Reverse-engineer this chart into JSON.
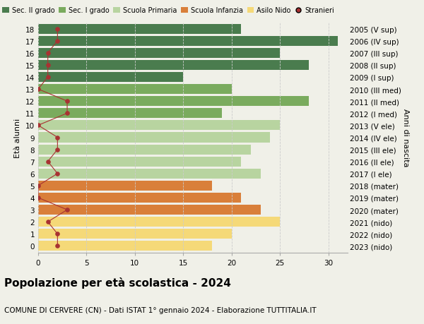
{
  "ages": [
    18,
    17,
    16,
    15,
    14,
    13,
    12,
    11,
    10,
    9,
    8,
    7,
    6,
    5,
    4,
    3,
    2,
    1,
    0
  ],
  "right_labels": [
    "2005 (V sup)",
    "2006 (IV sup)",
    "2007 (III sup)",
    "2008 (II sup)",
    "2009 (I sup)",
    "2010 (III med)",
    "2011 (II med)",
    "2012 (I med)",
    "2013 (V ele)",
    "2014 (IV ele)",
    "2015 (III ele)",
    "2016 (II ele)",
    "2017 (I ele)",
    "2018 (mater)",
    "2019 (mater)",
    "2020 (mater)",
    "2021 (nido)",
    "2022 (nido)",
    "2023 (nido)"
  ],
  "bar_values": [
    21,
    31,
    25,
    28,
    15,
    20,
    28,
    19,
    25,
    24,
    22,
    21,
    23,
    18,
    21,
    23,
    25,
    20,
    18
  ],
  "bar_colors": [
    "#4a7c4e",
    "#4a7c4e",
    "#4a7c4e",
    "#4a7c4e",
    "#4a7c4e",
    "#7aab5e",
    "#7aab5e",
    "#7aab5e",
    "#b8d4a0",
    "#b8d4a0",
    "#b8d4a0",
    "#b8d4a0",
    "#b8d4a0",
    "#d97f3a",
    "#d97f3a",
    "#d97f3a",
    "#f5d978",
    "#f5d978",
    "#f5d978"
  ],
  "stranieri_values": [
    2,
    2,
    1,
    1,
    1,
    0,
    3,
    3,
    0,
    2,
    2,
    1,
    2,
    0,
    0,
    3,
    1,
    2,
    2
  ],
  "stranieri_color": "#a83232",
  "stranieri_line_color": "#a83232",
  "xlim": [
    0,
    32
  ],
  "ylabel_left": "Età alunni",
  "ylabel_right": "Anni di nascita",
  "title": "Popolazione per età scolastica - 2024",
  "subtitle": "COMUNE DI CERVERE (CN) - Dati ISTAT 1° gennaio 2024 - Elaborazione TUTTITALIA.IT",
  "legend_labels": [
    "Sec. II grado",
    "Sec. I grado",
    "Scuola Primaria",
    "Scuola Infanzia",
    "Asilo Nido",
    "Stranieri"
  ],
  "legend_colors": [
    "#4a7c4e",
    "#7aab5e",
    "#b8d4a0",
    "#d97f3a",
    "#f5d978",
    "#a83232"
  ],
  "bg_color": "#f0f0e8",
  "bar_height": 0.82,
  "grid_color": "#cccccc",
  "title_fontsize": 11,
  "subtitle_fontsize": 7.5,
  "axis_fontsize": 8,
  "label_fontsize": 7.5,
  "legend_fontsize": 7
}
